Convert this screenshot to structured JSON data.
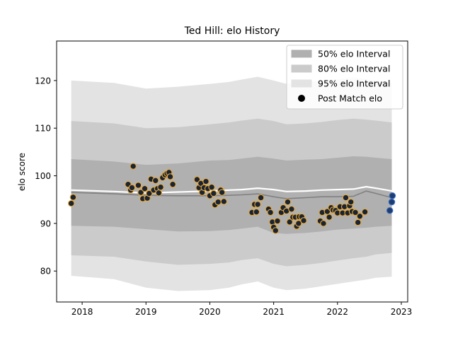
{
  "chart_data": {
    "type": "line",
    "title": "Ted Hill: elo History",
    "xlabel": "",
    "ylabel": "elo score",
    "xlim": [
      2017.6,
      2023.1
    ],
    "ylim": [
      73.5,
      128.3
    ],
    "x_ticks": [
      2018,
      2019,
      2020,
      2021,
      2022,
      2023
    ],
    "y_ticks": [
      80,
      90,
      100,
      110,
      120
    ],
    "grid": false,
    "legend_placement": "top-right",
    "legend": [
      {
        "label": "50% elo Interval",
        "kind": "band",
        "color": "#b0b0b0"
      },
      {
        "label": "80% elo Interval",
        "kind": "band",
        "color": "#cbcbcb"
      },
      {
        "label": "95% elo Interval",
        "kind": "band",
        "color": "#e3e3e3"
      },
      {
        "label": "Post Match elo",
        "kind": "marker",
        "color": "#000000"
      }
    ],
    "colors": {
      "band50": "#b0b0b0",
      "band80": "#cbcbcb",
      "band95": "#e3e3e3",
      "median_line": "#808080",
      "mean_line": "#ffffff",
      "point_fill": "#1a2433",
      "point_edge": "#e8a93a",
      "latest_point_fill": "#1f3d73",
      "latest_point_edge": "#3a6fc0"
    },
    "intervals": {
      "x": [
        2017.83,
        2018.5,
        2019.0,
        2019.5,
        2020.0,
        2020.3,
        2020.5,
        2020.75,
        2021.0,
        2021.2,
        2021.5,
        2021.75,
        2022.0,
        2022.25,
        2022.45,
        2022.6,
        2022.85
      ],
      "median": [
        96.5,
        96.2,
        95.9,
        95.8,
        95.8,
        95.9,
        96.0,
        96.2,
        95.6,
        95.2,
        95.4,
        95.6,
        95.6,
        95.7,
        96.8,
        96.3,
        95.4
      ],
      "mean": [
        97.0,
        96.7,
        96.4,
        96.6,
        96.8,
        97.0,
        97.1,
        97.4,
        97.1,
        96.7,
        96.8,
        97.0,
        97.1,
        97.2,
        97.7,
        97.4,
        96.8
      ],
      "lo50": [
        89.5,
        89.3,
        88.8,
        88.3,
        88.4,
        88.6,
        88.9,
        89.3,
        88.0,
        87.8,
        88.0,
        88.3,
        88.7,
        88.9,
        89.1,
        89.3,
        89.5
      ],
      "hi50": [
        103.5,
        103.0,
        102.3,
        102.6,
        103.2,
        103.3,
        103.6,
        104.0,
        103.6,
        103.2,
        103.4,
        103.5,
        103.8,
        104.1,
        104.0,
        103.8,
        103.5
      ],
      "lo80": [
        83.3,
        83.0,
        82.0,
        81.3,
        81.5,
        81.8,
        82.3,
        82.7,
        81.5,
        81.0,
        81.3,
        81.7,
        82.2,
        82.7,
        83.0,
        83.5,
        83.8
      ],
      "hi80": [
        111.5,
        111.0,
        110.0,
        110.2,
        110.8,
        111.2,
        111.6,
        112.0,
        111.5,
        110.8,
        111.0,
        111.3,
        111.7,
        112.0,
        111.8,
        111.6,
        111.2
      ],
      "lo95": [
        79.0,
        78.3,
        76.5,
        75.8,
        76.0,
        76.5,
        77.2,
        77.8,
        76.5,
        76.0,
        76.3,
        76.8,
        77.3,
        77.8,
        78.2,
        78.6,
        78.8
      ],
      "hi95": [
        120.0,
        119.5,
        118.3,
        118.7,
        119.3,
        119.7,
        120.2,
        120.8,
        120.0,
        119.3,
        119.6,
        120.0,
        120.3,
        120.6,
        120.3,
        120.0,
        119.5
      ]
    },
    "points": [
      [
        2017.83,
        94.2
      ],
      [
        2017.86,
        95.5
      ],
      [
        2018.72,
        98.2
      ],
      [
        2018.76,
        97.0
      ],
      [
        2018.78,
        97.5
      ],
      [
        2018.8,
        102.0
      ],
      [
        2018.88,
        98.0
      ],
      [
        2018.92,
        96.5
      ],
      [
        2018.95,
        95.2
      ],
      [
        2018.98,
        97.3
      ],
      [
        2019.02,
        95.3
      ],
      [
        2019.05,
        96.3
      ],
      [
        2019.08,
        99.3
      ],
      [
        2019.12,
        97.0
      ],
      [
        2019.15,
        99.0
      ],
      [
        2019.18,
        97.3
      ],
      [
        2019.2,
        96.4
      ],
      [
        2019.23,
        97.6
      ],
      [
        2019.26,
        99.6
      ],
      [
        2019.3,
        100.2
      ],
      [
        2019.33,
        100.5
      ],
      [
        2019.36,
        100.7
      ],
      [
        2019.38,
        99.8
      ],
      [
        2019.42,
        98.2
      ],
      [
        2019.8,
        99.2
      ],
      [
        2019.83,
        97.5
      ],
      [
        2019.86,
        98.4
      ],
      [
        2019.88,
        96.5
      ],
      [
        2019.91,
        97.5
      ],
      [
        2019.94,
        98.8
      ],
      [
        2019.97,
        97.3
      ],
      [
        2020.0,
        95.8
      ],
      [
        2020.03,
        97.6
      ],
      [
        2020.06,
        96.3
      ],
      [
        2020.08,
        93.9
      ],
      [
        2020.13,
        94.5
      ],
      [
        2020.17,
        97.0
      ],
      [
        2020.19,
        96.5
      ],
      [
        2020.22,
        94.6
      ],
      [
        2020.66,
        92.3
      ],
      [
        2020.7,
        94.0
      ],
      [
        2020.73,
        92.4
      ],
      [
        2020.75,
        94.0
      ],
      [
        2020.8,
        95.4
      ],
      [
        2020.92,
        93.0
      ],
      [
        2020.95,
        92.3
      ],
      [
        2020.98,
        90.3
      ],
      [
        2021.0,
        89.2
      ],
      [
        2021.03,
        88.5
      ],
      [
        2021.06,
        90.5
      ],
      [
        2021.12,
        92.3
      ],
      [
        2021.15,
        93.3
      ],
      [
        2021.2,
        92.6
      ],
      [
        2021.22,
        94.5
      ],
      [
        2021.25,
        90.3
      ],
      [
        2021.28,
        93.0
      ],
      [
        2021.3,
        91.3
      ],
      [
        2021.34,
        91.3
      ],
      [
        2021.36,
        89.4
      ],
      [
        2021.39,
        90.0
      ],
      [
        2021.4,
        91.4
      ],
      [
        2021.44,
        91.4
      ],
      [
        2021.47,
        90.6
      ],
      [
        2021.73,
        90.5
      ],
      [
        2021.76,
        92.3
      ],
      [
        2021.78,
        90.0
      ],
      [
        2021.84,
        92.5
      ],
      [
        2021.87,
        91.3
      ],
      [
        2021.9,
        93.3
      ],
      [
        2021.93,
        92.8
      ],
      [
        2021.97,
        92.7
      ],
      [
        2022.0,
        92.2
      ],
      [
        2022.04,
        93.5
      ],
      [
        2022.08,
        92.2
      ],
      [
        2022.11,
        93.5
      ],
      [
        2022.13,
        95.4
      ],
      [
        2022.16,
        92.2
      ],
      [
        2022.19,
        93.7
      ],
      [
        2022.21,
        94.5
      ],
      [
        2022.23,
        92.5
      ],
      [
        2022.28,
        92.3
      ],
      [
        2022.32,
        90.2
      ],
      [
        2022.35,
        91.5
      ],
      [
        2022.43,
        92.4
      ]
    ],
    "latest_points": [
      [
        2022.82,
        92.7
      ],
      [
        2022.85,
        94.5
      ],
      [
        2022.86,
        95.8
      ]
    ]
  }
}
